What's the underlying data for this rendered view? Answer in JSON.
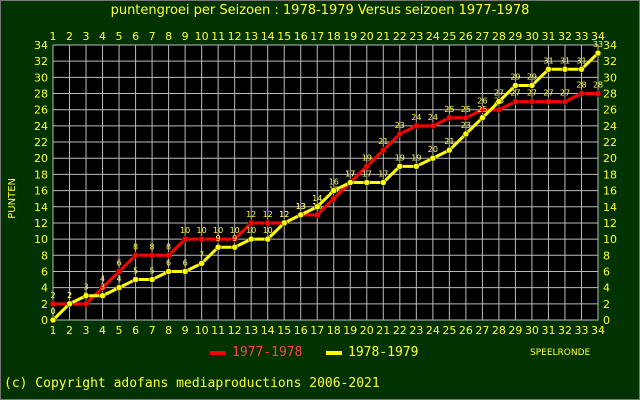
{
  "chart_data": {
    "type": "line",
    "title": "puntengroei per Seizoen : 1978-1979 Versus seizoen 1977-1978",
    "ylabel": "PUNTEN",
    "xlabel": "SPEELRONDE",
    "x": [
      1,
      2,
      3,
      4,
      5,
      6,
      7,
      8,
      9,
      10,
      11,
      12,
      13,
      14,
      15,
      16,
      17,
      18,
      19,
      20,
      21,
      22,
      23,
      24,
      25,
      26,
      27,
      28,
      29,
      30,
      31,
      32,
      33,
      34
    ],
    "xlim": [
      1,
      34
    ],
    "ylim": [
      0,
      34
    ],
    "ytick_step": 2,
    "grid": true,
    "legend_position": "bottom",
    "series": [
      {
        "name": "1977-1978",
        "color": "#ff0000",
        "values": [
          2,
          2,
          2,
          4,
          6,
          8,
          8,
          8,
          10,
          10,
          10,
          10,
          12,
          12,
          12,
          13,
          13,
          15,
          17,
          19,
          21,
          23,
          24,
          24,
          25,
          25,
          26,
          26,
          27,
          27,
          27,
          27,
          28,
          28
        ]
      },
      {
        "name": "1978-1979",
        "color": "#ffff00",
        "values": [
          0,
          2,
          3,
          3,
          4,
          5,
          5,
          6,
          6,
          7,
          9,
          9,
          10,
          10,
          12,
          13,
          14,
          16,
          17,
          17,
          17,
          19,
          19,
          20,
          21,
          23,
          25,
          27,
          29,
          29,
          31,
          31,
          31,
          33
        ]
      }
    ]
  },
  "colors": {
    "background": "#003300",
    "plot_background": "#000000",
    "grid": "#bbbbbb",
    "text": "#ffff33"
  },
  "copyright": "(c) Copyright adofans mediaproductions 2006-2021"
}
